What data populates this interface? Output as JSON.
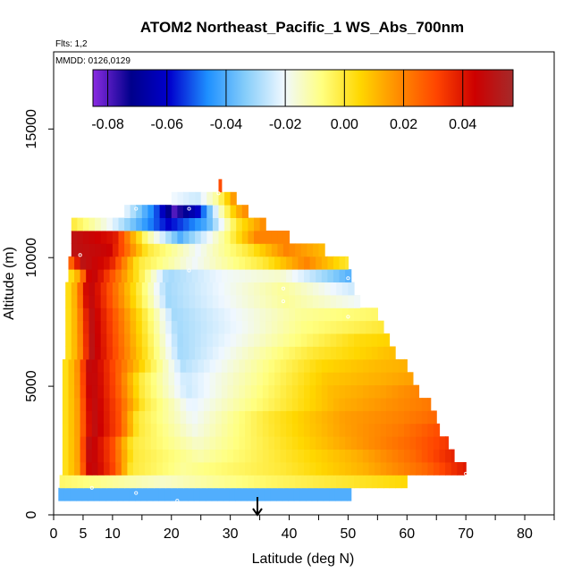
{
  "chart_data": {
    "type": "heatmap",
    "title": "ATOM2 Northeast_Pacific_1 WS_Abs_700nm",
    "subtitle_flights": "Flts: 1,2",
    "subtitle_dates": "MMDD: 0126,0129",
    "xlabel": "Latitude (deg N)",
    "ylabel": "Altitude (m)",
    "xlim": [
      0,
      85
    ],
    "ylim": [
      0,
      18000
    ],
    "xticks": [
      0,
      5,
      10,
      20,
      30,
      40,
      50,
      60,
      70,
      80
    ],
    "xtick_labels": [
      "0",
      "5",
      "10",
      "20",
      "30",
      "40",
      "50",
      "60",
      "70",
      "80"
    ],
    "yticks": [
      0,
      5000,
      10000,
      15000
    ],
    "ytick_labels": [
      "0",
      "5000",
      "10000",
      "15000"
    ],
    "colorbar": {
      "range": [
        -0.085,
        0.057
      ],
      "ticks": [
        -0.08,
        -0.06,
        -0.04,
        -0.02,
        0.0,
        0.02,
        0.04
      ],
      "tick_labels": [
        "-0.08",
        "-0.06",
        "-0.04",
        "-0.02",
        "0.00",
        "0.02",
        "0.04"
      ],
      "colors": [
        "#8a2be2",
        "#00008b",
        "#0000cd",
        "#1e90ff",
        "#87cefa",
        "#f0f8ff",
        "#ffff80",
        "#ffd700",
        "#ff8c00",
        "#ff4500",
        "#cd0000",
        "#a52a2a"
      ]
    },
    "rows": [
      {
        "alt": 800,
        "lat_min": 0.8,
        "lat_max": 50.5,
        "profile": [
          [
            0,
            -0.04
          ],
          [
            1,
            -0.04
          ]
        ]
      },
      {
        "alt": 1300,
        "lat_min": 1.0,
        "lat_max": 60.0,
        "profile": [
          [
            0,
            -0.005
          ],
          [
            0.3,
            -0.015
          ],
          [
            0.6,
            -0.005
          ],
          [
            1,
            0.005
          ]
        ]
      },
      {
        "alt": 1800,
        "lat_min": 1.5,
        "lat_max": 70.0,
        "profile": [
          [
            0,
            0.0
          ],
          [
            0.04,
            0.015
          ],
          [
            0.07,
            0.05
          ],
          [
            0.13,
            0.03
          ],
          [
            0.17,
            0.0
          ],
          [
            0.3,
            -0.01
          ],
          [
            0.55,
            0.0
          ],
          [
            0.75,
            0.012
          ],
          [
            0.9,
            0.025
          ],
          [
            1,
            0.04
          ]
        ]
      },
      {
        "alt": 2300,
        "lat_min": 1.5,
        "lat_max": 68.0,
        "profile": [
          [
            0,
            0.0
          ],
          [
            0.04,
            0.015
          ],
          [
            0.07,
            0.05
          ],
          [
            0.13,
            0.03
          ],
          [
            0.18,
            0.0
          ],
          [
            0.35,
            -0.012
          ],
          [
            0.55,
            0.0
          ],
          [
            0.75,
            0.012
          ],
          [
            0.9,
            0.025
          ],
          [
            1,
            0.038
          ]
        ]
      },
      {
        "alt": 2800,
        "lat_min": 1.5,
        "lat_max": 67.0,
        "profile": [
          [
            0,
            0.0
          ],
          [
            0.04,
            0.015
          ],
          [
            0.07,
            0.05
          ],
          [
            0.13,
            0.03
          ],
          [
            0.18,
            0.0
          ],
          [
            0.35,
            -0.015
          ],
          [
            0.55,
            0.0
          ],
          [
            0.75,
            0.015
          ],
          [
            0.9,
            0.025
          ],
          [
            1,
            0.034
          ]
        ]
      },
      {
        "alt": 3300,
        "lat_min": 1.5,
        "lat_max": 65.5,
        "profile": [
          [
            0,
            0.0
          ],
          [
            0.04,
            0.015
          ],
          [
            0.08,
            0.05
          ],
          [
            0.15,
            0.03
          ],
          [
            0.2,
            0.0
          ],
          [
            0.35,
            -0.018
          ],
          [
            0.55,
            0.0
          ],
          [
            0.75,
            0.015
          ],
          [
            0.9,
            0.022
          ],
          [
            1,
            0.03
          ]
        ]
      },
      {
        "alt": 3800,
        "lat_min": 1.5,
        "lat_max": 65.0,
        "profile": [
          [
            0,
            0.0
          ],
          [
            0.04,
            0.015
          ],
          [
            0.08,
            0.05
          ],
          [
            0.15,
            0.03
          ],
          [
            0.2,
            0.0
          ],
          [
            0.35,
            -0.02
          ],
          [
            0.55,
            0.0
          ],
          [
            0.75,
            0.015
          ],
          [
            0.9,
            0.02
          ],
          [
            1,
            0.025
          ]
        ]
      },
      {
        "alt": 4300,
        "lat_min": 1.5,
        "lat_max": 64.0,
        "profile": [
          [
            0,
            0.0
          ],
          [
            0.04,
            0.015
          ],
          [
            0.08,
            0.05
          ],
          [
            0.15,
            0.03
          ],
          [
            0.22,
            0.0
          ],
          [
            0.35,
            -0.022
          ],
          [
            0.55,
            -0.005
          ],
          [
            0.75,
            0.012
          ],
          [
            0.9,
            0.018
          ],
          [
            1,
            0.022
          ]
        ]
      },
      {
        "alt": 4800,
        "lat_min": 1.5,
        "lat_max": 62.0,
        "profile": [
          [
            0,
            0.0
          ],
          [
            0.04,
            0.015
          ],
          [
            0.08,
            0.05
          ],
          [
            0.15,
            0.03
          ],
          [
            0.22,
            0.0
          ],
          [
            0.35,
            -0.025
          ],
          [
            0.55,
            -0.008
          ],
          [
            0.75,
            0.01
          ],
          [
            0.9,
            0.015
          ],
          [
            1,
            0.02
          ]
        ]
      },
      {
        "alt": 5300,
        "lat_min": 1.5,
        "lat_max": 61.0,
        "profile": [
          [
            0,
            0.0
          ],
          [
            0.04,
            0.015
          ],
          [
            0.08,
            0.05
          ],
          [
            0.15,
            0.03
          ],
          [
            0.22,
            0.0
          ],
          [
            0.35,
            -0.025
          ],
          [
            0.55,
            -0.01
          ],
          [
            0.75,
            0.008
          ],
          [
            0.9,
            0.012
          ],
          [
            1,
            0.015
          ]
        ]
      },
      {
        "alt": 5800,
        "lat_min": 1.5,
        "lat_max": 60.0,
        "profile": [
          [
            0,
            0.0
          ],
          [
            0.04,
            0.015
          ],
          [
            0.08,
            0.05
          ],
          [
            0.15,
            0.03
          ],
          [
            0.25,
            0.0
          ],
          [
            0.35,
            -0.028
          ],
          [
            0.55,
            -0.012
          ],
          [
            0.75,
            0.005
          ],
          [
            0.9,
            0.01
          ],
          [
            1,
            0.012
          ]
        ]
      },
      {
        "alt": 6300,
        "lat_min": 2.0,
        "lat_max": 58.0,
        "profile": [
          [
            0,
            0.0
          ],
          [
            0.04,
            0.015
          ],
          [
            0.08,
            0.05
          ],
          [
            0.15,
            0.03
          ],
          [
            0.25,
            0.0
          ],
          [
            0.35,
            -0.03
          ],
          [
            0.55,
            -0.015
          ],
          [
            0.75,
            0.0
          ],
          [
            0.9,
            0.006
          ],
          [
            1,
            0.01
          ]
        ]
      },
      {
        "alt": 6800,
        "lat_min": 2.0,
        "lat_max": 57.0,
        "profile": [
          [
            0,
            0.0
          ],
          [
            0.04,
            0.015
          ],
          [
            0.08,
            0.05
          ],
          [
            0.15,
            0.03
          ],
          [
            0.25,
            0.0
          ],
          [
            0.35,
            -0.03
          ],
          [
            0.55,
            -0.018
          ],
          [
            0.75,
            -0.005
          ],
          [
            0.9,
            0.004
          ],
          [
            1,
            0.006
          ]
        ]
      },
      {
        "alt": 7300,
        "lat_min": 2.0,
        "lat_max": 56.0,
        "profile": [
          [
            0,
            0.0
          ],
          [
            0.04,
            0.015
          ],
          [
            0.08,
            0.05
          ],
          [
            0.15,
            0.03
          ],
          [
            0.25,
            0.0
          ],
          [
            0.35,
            -0.03
          ],
          [
            0.55,
            -0.02
          ],
          [
            0.75,
            -0.008
          ],
          [
            1,
            0.0
          ]
        ]
      },
      {
        "alt": 7800,
        "lat_min": 2.0,
        "lat_max": 55.0,
        "profile": [
          [
            0,
            0.0
          ],
          [
            0.04,
            0.015
          ],
          [
            0.08,
            0.05
          ],
          [
            0.15,
            0.03
          ],
          [
            0.25,
            0.0
          ],
          [
            0.35,
            -0.03
          ],
          [
            0.55,
            -0.02
          ],
          [
            0.75,
            -0.01
          ],
          [
            1,
            -0.005
          ]
        ]
      },
      {
        "alt": 8300,
        "lat_min": 2.0,
        "lat_max": 52.0,
        "profile": [
          [
            0,
            0.0
          ],
          [
            0.04,
            0.015
          ],
          [
            0.08,
            0.05
          ],
          [
            0.15,
            0.03
          ],
          [
            0.25,
            0.0
          ],
          [
            0.35,
            -0.03
          ],
          [
            0.55,
            -0.02
          ],
          [
            0.75,
            -0.01
          ],
          [
            1,
            -0.02
          ]
        ]
      },
      {
        "alt": 8800,
        "lat_min": 2.0,
        "lat_max": 51.0,
        "profile": [
          [
            0,
            0.0
          ],
          [
            0.04,
            0.015
          ],
          [
            0.08,
            0.05
          ],
          [
            0.15,
            0.03
          ],
          [
            0.25,
            0.0
          ],
          [
            0.35,
            -0.03
          ],
          [
            0.55,
            -0.02
          ],
          [
            0.75,
            -0.01
          ],
          [
            1,
            -0.025
          ]
        ]
      },
      {
        "alt": 9300,
        "lat_min": 2.5,
        "lat_max": 50.5,
        "profile": [
          [
            0,
            0.0
          ],
          [
            0.04,
            0.015
          ],
          [
            0.08,
            0.05
          ],
          [
            0.15,
            0.03
          ],
          [
            0.25,
            0.0
          ],
          [
            0.35,
            -0.03
          ],
          [
            0.55,
            -0.02
          ],
          [
            0.75,
            -0.015
          ],
          [
            1,
            -0.04
          ]
        ]
      },
      {
        "alt": 9800,
        "lat_min": 2.5,
        "lat_max": 50.0,
        "profile": [
          [
            0,
            0.02
          ],
          [
            0.05,
            0.05
          ],
          [
            0.15,
            0.04
          ],
          [
            0.25,
            0.0
          ],
          [
            0.45,
            -0.02
          ],
          [
            0.7,
            0.0
          ],
          [
            0.85,
            0.02
          ],
          [
            1,
            0.0
          ]
        ]
      },
      {
        "alt": 10300,
        "lat_min": 3.0,
        "lat_max": 46.0,
        "profile": [
          [
            0,
            0.05
          ],
          [
            0.15,
            0.045
          ],
          [
            0.3,
            0.0
          ],
          [
            0.5,
            -0.02
          ],
          [
            0.7,
            0.0
          ],
          [
            0.85,
            0.02
          ],
          [
            1,
            0.01
          ]
        ]
      },
      {
        "alt": 10800,
        "lat_min": 3.0,
        "lat_max": 40.0,
        "profile": [
          [
            0,
            0.05
          ],
          [
            0.2,
            0.04
          ],
          [
            0.35,
            -0.01
          ],
          [
            0.5,
            -0.04
          ],
          [
            0.7,
            -0.01
          ],
          [
            0.85,
            0.02
          ],
          [
            1,
            0.02
          ]
        ]
      },
      {
        "alt": 11300,
        "lat_min": 3.0,
        "lat_max": 36.0,
        "profile": [
          [
            0,
            0.0
          ],
          [
            0.2,
            -0.02
          ],
          [
            0.5,
            -0.06
          ],
          [
            0.7,
            -0.04
          ],
          [
            0.85,
            0.0
          ],
          [
            1,
            0.02
          ]
        ]
      },
      {
        "alt": 11800,
        "lat_min": 12.0,
        "lat_max": 33.0,
        "profile": [
          [
            0,
            -0.02
          ],
          [
            0.25,
            -0.05
          ],
          [
            0.4,
            -0.08
          ],
          [
            0.6,
            -0.06
          ],
          [
            0.75,
            -0.02
          ],
          [
            0.9,
            0.01
          ],
          [
            1,
            0.02
          ]
        ]
      },
      {
        "alt": 12300,
        "lat_min": 20.0,
        "lat_max": 31.0,
        "profile": [
          [
            0,
            -0.02
          ],
          [
            0.4,
            -0.025
          ],
          [
            0.7,
            -0.01
          ],
          [
            1,
            0.02
          ]
        ]
      },
      {
        "alt": 12800,
        "lat_min": 28.0,
        "lat_max": 28.5,
        "profile": [
          [
            0,
            0.03
          ],
          [
            1,
            0.03
          ]
        ]
      }
    ]
  }
}
